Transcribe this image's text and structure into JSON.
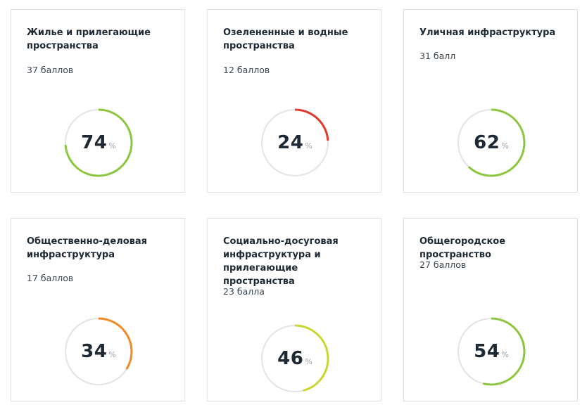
{
  "cards": [
    {
      "title": "Жилье и прилегающие пространства",
      "score": "37 баллов",
      "percent": 74,
      "percent_label": "74",
      "unit": "%",
      "color": "#8cc63f"
    },
    {
      "title": "Озелененные и водные пространства",
      "score": "12 баллов",
      "percent": 24,
      "percent_label": "24",
      "unit": "%",
      "color": "#e03a2e"
    },
    {
      "title": "Уличная инфраструктура",
      "score": "31 балл",
      "percent": 62,
      "percent_label": "62",
      "unit": "%",
      "color": "#8cc63f"
    },
    {
      "title": "Общественно-деловая инфраструктура",
      "score": "17 баллов",
      "percent": 34,
      "percent_label": "34",
      "unit": "%",
      "color": "#f08a24"
    },
    {
      "title": "Социально-досуговая инфраструктура и прилегающие пространства",
      "score": "23 балла",
      "percent": 46,
      "percent_label": "46",
      "unit": "%",
      "color": "#c8d630"
    },
    {
      "title": "Общегородское пространство",
      "score": "27 баллов",
      "percent": 54,
      "percent_label": "54",
      "unit": "%",
      "color": "#8cc63f"
    }
  ]
}
